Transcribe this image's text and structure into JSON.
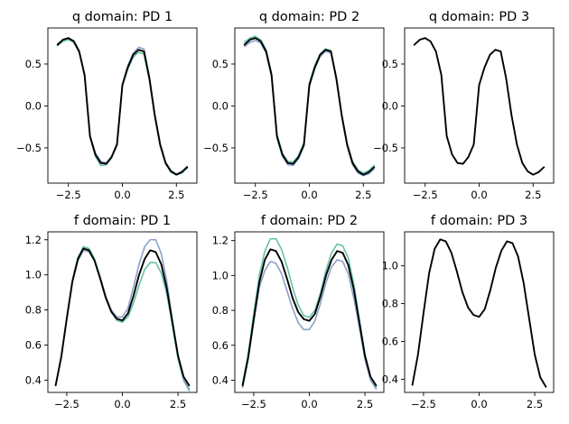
{
  "chart_data": [
    {
      "type": "line",
      "title": "q domain: PD 1",
      "xlim": [
        -3.45,
        3.45
      ],
      "ylim": [
        -0.92,
        0.93
      ],
      "xticks": [
        -2.5,
        0.0,
        2.5
      ],
      "xtick_labels": [
        "−2.5",
        "0.0",
        "2.5"
      ],
      "yticks": [
        -0.5,
        0.0,
        0.5
      ],
      "ytick_labels": [
        "−0.5",
        "0.0",
        "0.5"
      ],
      "x": [
        -3.0,
        -2.75,
        -2.5,
        -2.25,
        -2.0,
        -1.75,
        -1.5,
        -1.25,
        -1.0,
        -0.75,
        -0.5,
        -0.25,
        0.0,
        0.25,
        0.5,
        0.75,
        1.0,
        1.25,
        1.5,
        1.75,
        2.0,
        2.25,
        2.5,
        2.75,
        3.0
      ],
      "series": [
        {
          "color": "#8da0cb",
          "width": 1.6,
          "values": [
            0.74,
            0.79,
            0.81,
            0.78,
            0.66,
            0.38,
            -0.35,
            -0.56,
            -0.66,
            -0.68,
            -0.6,
            -0.45,
            0.26,
            0.48,
            0.63,
            0.7,
            0.68,
            0.35,
            -0.1,
            -0.45,
            -0.67,
            -0.77,
            -0.81,
            -0.78,
            -0.72
          ]
        },
        {
          "color": "#66c2a5",
          "width": 1.6,
          "values": [
            0.72,
            0.77,
            0.79,
            0.76,
            0.64,
            0.36,
            -0.37,
            -0.6,
            -0.71,
            -0.7,
            -0.62,
            -0.47,
            0.24,
            0.44,
            0.58,
            0.64,
            0.62,
            0.31,
            -0.13,
            -0.48,
            -0.69,
            -0.79,
            -0.82,
            -0.8,
            -0.74
          ]
        },
        {
          "color": "#000000",
          "width": 1.9,
          "values": [
            0.73,
            0.79,
            0.81,
            0.77,
            0.65,
            0.37,
            -0.36,
            -0.58,
            -0.68,
            -0.69,
            -0.61,
            -0.46,
            0.25,
            0.46,
            0.61,
            0.67,
            0.65,
            0.33,
            -0.11,
            -0.46,
            -0.68,
            -0.78,
            -0.82,
            -0.79,
            -0.73
          ]
        }
      ]
    },
    {
      "type": "line",
      "title": "q domain: PD 2",
      "xlim": [
        -3.45,
        3.45
      ],
      "ylim": [
        -0.92,
        0.93
      ],
      "xticks": [
        -2.5,
        0.0,
        2.5
      ],
      "xtick_labels": [
        "−2.5",
        "0.0",
        "2.5"
      ],
      "yticks": [
        -0.5,
        0.0,
        0.5
      ],
      "ytick_labels": [
        "−0.5",
        "0.0",
        "0.5"
      ],
      "x": [
        -3.0,
        -2.75,
        -2.5,
        -2.25,
        -2.0,
        -1.75,
        -1.5,
        -1.25,
        -1.0,
        -0.75,
        -0.5,
        -0.25,
        0.0,
        0.25,
        0.5,
        0.75,
        1.0,
        1.25,
        1.5,
        1.75,
        2.0,
        2.25,
        2.5,
        2.75,
        3.0
      ],
      "series": [
        {
          "color": "#66c2a5",
          "width": 1.6,
          "values": [
            0.76,
            0.81,
            0.83,
            0.79,
            0.67,
            0.39,
            -0.34,
            -0.56,
            -0.66,
            -0.67,
            -0.59,
            -0.44,
            0.27,
            0.48,
            0.62,
            0.68,
            0.66,
            0.34,
            -0.1,
            -0.45,
            -0.66,
            -0.76,
            -0.8,
            -0.77,
            -0.71
          ]
        },
        {
          "color": "#8da0cb",
          "width": 1.6,
          "values": [
            0.71,
            0.76,
            0.78,
            0.75,
            0.63,
            0.35,
            -0.38,
            -0.6,
            -0.7,
            -0.71,
            -0.63,
            -0.48,
            0.23,
            0.44,
            0.59,
            0.65,
            0.63,
            0.31,
            -0.13,
            -0.48,
            -0.7,
            -0.8,
            -0.83,
            -0.81,
            -0.75
          ]
        },
        {
          "color": "#000000",
          "width": 1.9,
          "values": [
            0.73,
            0.79,
            0.81,
            0.77,
            0.65,
            0.37,
            -0.36,
            -0.58,
            -0.68,
            -0.69,
            -0.61,
            -0.46,
            0.25,
            0.46,
            0.61,
            0.67,
            0.65,
            0.33,
            -0.11,
            -0.46,
            -0.68,
            -0.78,
            -0.82,
            -0.79,
            -0.73
          ]
        }
      ]
    },
    {
      "type": "line",
      "title": "q domain: PD 3",
      "xlim": [
        -3.45,
        3.45
      ],
      "ylim": [
        -0.92,
        0.93
      ],
      "xticks": [
        -2.5,
        0.0,
        2.5
      ],
      "xtick_labels": [
        "−2.5",
        "0.0",
        "2.5"
      ],
      "yticks": [
        -0.5,
        0.0,
        0.5
      ],
      "ytick_labels": [
        "−0.5",
        "0.0",
        "0.5"
      ],
      "x": [
        -3.0,
        -2.75,
        -2.5,
        -2.25,
        -2.0,
        -1.75,
        -1.5,
        -1.25,
        -1.0,
        -0.75,
        -0.5,
        -0.25,
        0.0,
        0.25,
        0.5,
        0.75,
        1.0,
        1.25,
        1.5,
        1.75,
        2.0,
        2.25,
        2.5,
        2.75,
        3.0
      ],
      "series": [
        {
          "color": "#000000",
          "width": 1.9,
          "values": [
            0.73,
            0.79,
            0.81,
            0.77,
            0.65,
            0.37,
            -0.36,
            -0.58,
            -0.68,
            -0.69,
            -0.61,
            -0.46,
            0.25,
            0.46,
            0.61,
            0.67,
            0.65,
            0.33,
            -0.11,
            -0.46,
            -0.68,
            -0.78,
            -0.82,
            -0.79,
            -0.73
          ]
        }
      ]
    },
    {
      "type": "line",
      "title": "f domain: PD 1",
      "xlim": [
        -3.35,
        3.35
      ],
      "ylim": [
        0.33,
        1.245
      ],
      "xticks": [
        -2.5,
        0.0,
        2.5
      ],
      "xtick_labels": [
        "−2.5",
        "0.0",
        "2.5"
      ],
      "yticks": [
        0.4,
        0.6,
        0.8,
        1.0,
        1.2
      ],
      "ytick_labels": [
        "0.4",
        "0.6",
        "0.8",
        "1.0",
        "1.2"
      ],
      "x": [
        -3.0,
        -2.75,
        -2.5,
        -2.25,
        -2.0,
        -1.75,
        -1.5,
        -1.25,
        -1.0,
        -0.75,
        -0.5,
        -0.25,
        0.0,
        0.25,
        0.5,
        0.75,
        1.0,
        1.25,
        1.5,
        1.75,
        2.0,
        2.25,
        2.5,
        2.75,
        3.0
      ],
      "series": [
        {
          "color": "#66c2a5",
          "width": 1.6,
          "values": [
            0.37,
            0.54,
            0.76,
            0.97,
            1.1,
            1.16,
            1.15,
            1.09,
            0.99,
            0.88,
            0.79,
            0.74,
            0.73,
            0.76,
            0.84,
            0.94,
            1.03,
            1.07,
            1.07,
            1.01,
            0.89,
            0.71,
            0.52,
            0.4,
            0.34
          ]
        },
        {
          "color": "#8da0cb",
          "width": 1.6,
          "values": [
            0.37,
            0.53,
            0.75,
            0.96,
            1.08,
            1.14,
            1.13,
            1.08,
            0.98,
            0.88,
            0.8,
            0.76,
            0.76,
            0.81,
            0.93,
            1.06,
            1.16,
            1.2,
            1.2,
            1.12,
            0.96,
            0.74,
            0.54,
            0.41,
            0.35
          ]
        },
        {
          "color": "#000000",
          "width": 1.9,
          "values": [
            0.37,
            0.53,
            0.75,
            0.96,
            1.09,
            1.15,
            1.14,
            1.08,
            0.98,
            0.87,
            0.79,
            0.75,
            0.74,
            0.78,
            0.88,
            1.0,
            1.09,
            1.14,
            1.13,
            1.06,
            0.92,
            0.73,
            0.54,
            0.42,
            0.37
          ]
        }
      ]
    },
    {
      "type": "line",
      "title": "f domain: PD 2",
      "xlim": [
        -3.35,
        3.35
      ],
      "ylim": [
        0.33,
        1.25
      ],
      "xticks": [
        -2.5,
        0.0,
        2.5
      ],
      "xtick_labels": [
        "−2.5",
        "0.0",
        "2.5"
      ],
      "yticks": [
        0.4,
        0.6,
        0.8,
        1.0,
        1.2
      ],
      "ytick_labels": [
        "0.4",
        "0.6",
        "0.8",
        "1.0",
        "1.2"
      ],
      "x": [
        -3.0,
        -2.75,
        -2.5,
        -2.25,
        -2.0,
        -1.75,
        -1.5,
        -1.25,
        -1.0,
        -0.75,
        -0.5,
        -0.25,
        0.0,
        0.25,
        0.5,
        0.75,
        1.0,
        1.25,
        1.5,
        1.75,
        2.0,
        2.25,
        2.5,
        2.75,
        3.0
      ],
      "series": [
        {
          "color": "#66c2a5",
          "width": 1.6,
          "values": [
            0.38,
            0.55,
            0.78,
            1.0,
            1.14,
            1.21,
            1.21,
            1.15,
            1.05,
            0.93,
            0.83,
            0.77,
            0.76,
            0.8,
            0.9,
            1.03,
            1.13,
            1.18,
            1.17,
            1.1,
            0.95,
            0.75,
            0.55,
            0.42,
            0.36
          ]
        },
        {
          "color": "#8da0cb",
          "width": 1.6,
          "values": [
            0.36,
            0.52,
            0.73,
            0.93,
            1.03,
            1.08,
            1.07,
            1.01,
            0.91,
            0.81,
            0.73,
            0.69,
            0.69,
            0.74,
            0.84,
            0.96,
            1.05,
            1.09,
            1.08,
            1.01,
            0.87,
            0.7,
            0.52,
            0.4,
            0.35
          ]
        },
        {
          "color": "#000000",
          "width": 1.9,
          "values": [
            0.37,
            0.53,
            0.75,
            0.96,
            1.09,
            1.15,
            1.14,
            1.08,
            0.98,
            0.87,
            0.79,
            0.75,
            0.74,
            0.78,
            0.88,
            1.0,
            1.09,
            1.14,
            1.13,
            1.06,
            0.92,
            0.73,
            0.54,
            0.42,
            0.37
          ]
        }
      ]
    },
    {
      "type": "line",
      "title": "f domain: PD 3",
      "xlim": [
        -3.35,
        3.35
      ],
      "ylim": [
        0.33,
        1.18
      ],
      "xticks": [
        -2.5,
        0.0,
        2.5
      ],
      "xtick_labels": [
        "−2.5",
        "0.0",
        "2.5"
      ],
      "yticks": [
        0.4,
        0.6,
        0.8,
        1.0
      ],
      "ytick_labels": [
        "0.4",
        "0.6",
        "0.8",
        "1.0"
      ],
      "x": [
        -3.0,
        -2.75,
        -2.5,
        -2.25,
        -2.0,
        -1.75,
        -1.5,
        -1.25,
        -1.0,
        -0.75,
        -0.5,
        -0.25,
        0.0,
        0.25,
        0.5,
        0.75,
        1.0,
        1.25,
        1.5,
        1.75,
        2.0,
        2.25,
        2.5,
        2.75,
        3.0
      ],
      "series": [
        {
          "color": "#000000",
          "width": 1.9,
          "values": [
            0.37,
            0.53,
            0.75,
            0.96,
            1.09,
            1.14,
            1.13,
            1.07,
            0.97,
            0.86,
            0.78,
            0.74,
            0.73,
            0.77,
            0.87,
            0.99,
            1.08,
            1.13,
            1.12,
            1.05,
            0.91,
            0.72,
            0.53,
            0.41,
            0.36
          ]
        }
      ]
    }
  ]
}
